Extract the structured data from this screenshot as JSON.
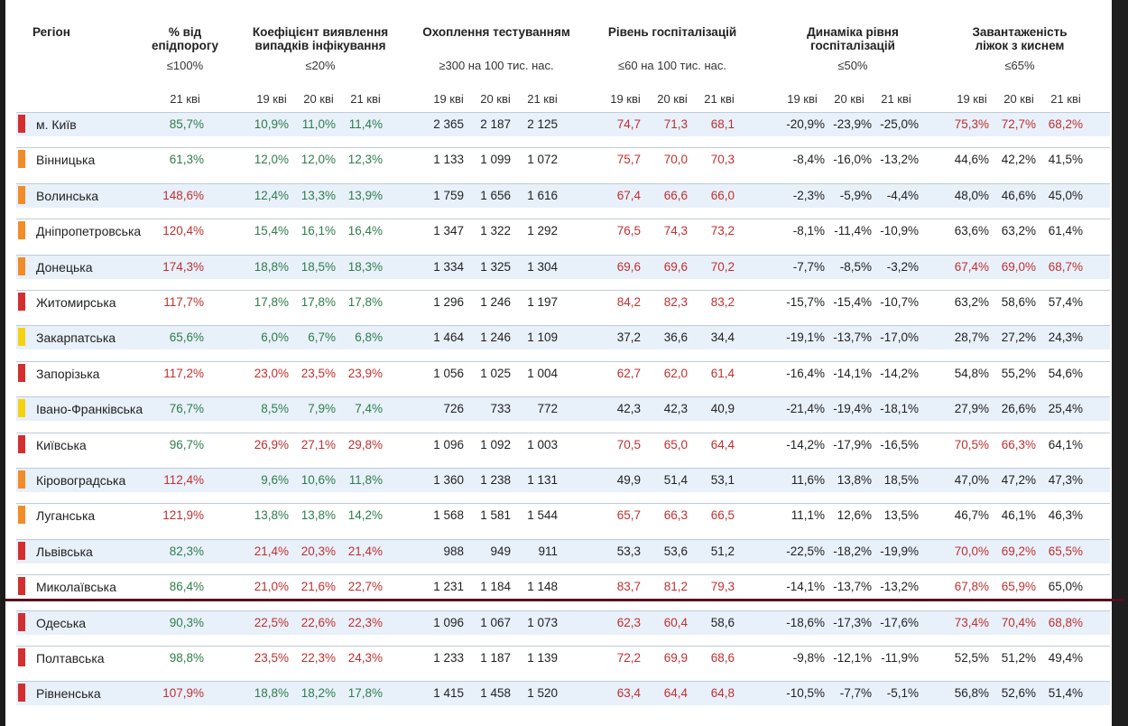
{
  "colors": {
    "red": "#d32f2f",
    "orange": "#f28c28",
    "yellow": "#f5d20f",
    "green_value": "#2e7d4a",
    "red_value": "#c0302f",
    "row_shade": "#e8f0fa",
    "divider": "#5a1020"
  },
  "header": {
    "region": "Регіон",
    "col_threshold": {
      "title1": "% від",
      "title2": "епідпорогу",
      "limit": "≤100%",
      "dates": [
        "21 кві"
      ]
    },
    "col_detect": {
      "title1": "Коефіцієнт виявлення",
      "title2": "випадків інфікування",
      "limit": "≤20%",
      "dates": [
        "19 кві",
        "20 кві",
        "21 кві"
      ]
    },
    "col_testing": {
      "title1": "Охоплення тестуванням",
      "title2": "",
      "limit": "≥300 на 100 тис. нас.",
      "dates": [
        "19 кві",
        "20 кві",
        "21 кві"
      ]
    },
    "col_hosp": {
      "title1": "Рівень госпіталізацій",
      "title2": "",
      "limit": "≤60 на 100 тис. нас.",
      "dates": [
        "19 кві",
        "20 кві",
        "21 кві"
      ]
    },
    "col_dyn": {
      "title1": "Динаміка рівня",
      "title2": "госпіталізацій",
      "limit": "≤50%",
      "dates": [
        "19 кві",
        "20 кві",
        "21 кві"
      ]
    },
    "col_beds": {
      "title1": "Завантаженість",
      "title2": "ліжок з киснем",
      "limit": "≤65%",
      "dates": [
        "19 кві",
        "20 кві",
        "21 кві"
      ]
    }
  },
  "rows": [
    {
      "region": "м. Київ",
      "status": "red",
      "thr": "85,7%",
      "det": [
        "10,9%",
        "11,0%",
        "11,4%"
      ],
      "test": [
        "2 365",
        "2 187",
        "2 125"
      ],
      "hosp": [
        "74,7",
        "71,3",
        "68,1"
      ],
      "dyn": [
        "-20,9%",
        "-23,9%",
        "-25,0%"
      ],
      "beds": [
        "75,3%",
        "72,7%",
        "68,2%"
      ]
    },
    {
      "region": "Вінницька",
      "status": "orange",
      "thr": "61,3%",
      "det": [
        "12,0%",
        "12,0%",
        "12,3%"
      ],
      "test": [
        "1 133",
        "1 099",
        "1 072"
      ],
      "hosp": [
        "75,7",
        "70,0",
        "70,3"
      ],
      "dyn": [
        "-8,4%",
        "-16,0%",
        "-13,2%"
      ],
      "beds": [
        "44,6%",
        "42,2%",
        "41,5%"
      ]
    },
    {
      "region": "Волинська",
      "status": "orange",
      "thr": "148,6%",
      "det": [
        "12,4%",
        "13,3%",
        "13,9%"
      ],
      "test": [
        "1 759",
        "1 656",
        "1 616"
      ],
      "hosp": [
        "67,4",
        "66,6",
        "66,0"
      ],
      "dyn": [
        "-2,3%",
        "-5,9%",
        "-4,4%"
      ],
      "beds": [
        "48,0%",
        "46,6%",
        "45,0%"
      ]
    },
    {
      "region": "Дніпропетровська",
      "status": "orange",
      "thr": "120,4%",
      "det": [
        "15,4%",
        "16,1%",
        "16,4%"
      ],
      "test": [
        "1 347",
        "1 322",
        "1 292"
      ],
      "hosp": [
        "76,5",
        "74,3",
        "73,2"
      ],
      "dyn": [
        "-8,1%",
        "-11,4%",
        "-10,9%"
      ],
      "beds": [
        "63,6%",
        "63,2%",
        "61,4%"
      ]
    },
    {
      "region": "Донецька",
      "status": "orange",
      "thr": "174,3%",
      "det": [
        "18,8%",
        "18,5%",
        "18,3%"
      ],
      "test": [
        "1 334",
        "1 325",
        "1 304"
      ],
      "hosp": [
        "69,6",
        "69,6",
        "70,2"
      ],
      "dyn": [
        "-7,7%",
        "-8,5%",
        "-3,2%"
      ],
      "beds": [
        "67,4%",
        "69,0%",
        "68,7%"
      ]
    },
    {
      "region": "Житомирська",
      "status": "red",
      "thr": "117,7%",
      "det": [
        "17,8%",
        "17,8%",
        "17,8%"
      ],
      "test": [
        "1 296",
        "1 246",
        "1 197"
      ],
      "hosp": [
        "84,2",
        "82,3",
        "83,2"
      ],
      "dyn": [
        "-15,7%",
        "-15,4%",
        "-10,7%"
      ],
      "beds": [
        "63,2%",
        "58,6%",
        "57,4%"
      ]
    },
    {
      "region": "Закарпатська",
      "status": "yellow",
      "thr": "65,6%",
      "det": [
        "6,0%",
        "6,7%",
        "6,8%"
      ],
      "test": [
        "1 464",
        "1 246",
        "1 109"
      ],
      "hosp": [
        "37,2",
        "36,6",
        "34,4"
      ],
      "dyn": [
        "-19,1%",
        "-13,7%",
        "-17,0%"
      ],
      "beds": [
        "28,7%",
        "27,2%",
        "24,3%"
      ]
    },
    {
      "region": "Запорізька",
      "status": "red",
      "thr": "117,2%",
      "det": [
        "23,0%",
        "23,5%",
        "23,9%"
      ],
      "test": [
        "1 056",
        "1 025",
        "1 004"
      ],
      "hosp": [
        "62,7",
        "62,0",
        "61,4"
      ],
      "dyn": [
        "-16,4%",
        "-14,1%",
        "-14,2%"
      ],
      "beds": [
        "54,8%",
        "55,2%",
        "54,6%"
      ]
    },
    {
      "region": "Івано-Франківська",
      "status": "yellow",
      "thr": "76,7%",
      "det": [
        "8,5%",
        "7,9%",
        "7,4%"
      ],
      "test": [
        "726",
        "733",
        "772"
      ],
      "hosp": [
        "42,3",
        "42,3",
        "40,9"
      ],
      "dyn": [
        "-21,4%",
        "-19,4%",
        "-18,1%"
      ],
      "beds": [
        "27,9%",
        "26,6%",
        "25,4%"
      ]
    },
    {
      "region": "Київська",
      "status": "red",
      "thr": "96,7%",
      "det": [
        "26,9%",
        "27,1%",
        "29,8%"
      ],
      "test": [
        "1 096",
        "1 092",
        "1 003"
      ],
      "hosp": [
        "70,5",
        "65,0",
        "64,4"
      ],
      "dyn": [
        "-14,2%",
        "-17,9%",
        "-16,5%"
      ],
      "beds": [
        "70,5%",
        "66,3%",
        "64,1%"
      ]
    },
    {
      "region": "Кіровоградська",
      "status": "orange",
      "thr": "112,4%",
      "det": [
        "9,6%",
        "10,6%",
        "11,8%"
      ],
      "test": [
        "1 360",
        "1 238",
        "1 131"
      ],
      "hosp": [
        "49,9",
        "51,4",
        "53,1"
      ],
      "dyn": [
        "11,6%",
        "13,8%",
        "18,5%"
      ],
      "beds": [
        "47,0%",
        "47,2%",
        "47,3%"
      ]
    },
    {
      "region": "Луганська",
      "status": "orange",
      "thr": "121,9%",
      "det": [
        "13,8%",
        "13,8%",
        "14,2%"
      ],
      "test": [
        "1 568",
        "1 581",
        "1 544"
      ],
      "hosp": [
        "65,7",
        "66,3",
        "66,5"
      ],
      "dyn": [
        "11,1%",
        "12,6%",
        "13,5%"
      ],
      "beds": [
        "46,7%",
        "46,1%",
        "46,3%"
      ]
    },
    {
      "region": "Львівська",
      "status": "red",
      "thr": "82,3%",
      "det": [
        "21,4%",
        "20,3%",
        "21,4%"
      ],
      "test": [
        "988",
        "949",
        "911"
      ],
      "hosp": [
        "53,3",
        "53,6",
        "51,2"
      ],
      "dyn": [
        "-22,5%",
        "-18,2%",
        "-19,9%"
      ],
      "beds": [
        "70,0%",
        "69,2%",
        "65,5%"
      ]
    },
    {
      "region": "Миколаївська",
      "status": "red",
      "thr": "86,4%",
      "det": [
        "21,0%",
        "21,6%",
        "22,7%"
      ],
      "test": [
        "1 231",
        "1 184",
        "1 148"
      ],
      "hosp": [
        "83,7",
        "81,2",
        "79,3"
      ],
      "dyn": [
        "-14,1%",
        "-13,7%",
        "-13,2%"
      ],
      "beds": [
        "67,8%",
        "65,9%",
        "65,0%"
      ]
    },
    {
      "region": "Одеська",
      "status": "red",
      "thr": "90,3%",
      "det": [
        "22,5%",
        "22,6%",
        "22,3%"
      ],
      "test": [
        "1 096",
        "1 067",
        "1 073"
      ],
      "hosp": [
        "62,3",
        "60,4",
        "58,6"
      ],
      "dyn": [
        "-18,6%",
        "-17,3%",
        "-17,6%"
      ],
      "beds": [
        "73,4%",
        "70,4%",
        "68,8%"
      ]
    },
    {
      "region": "Полтавська",
      "status": "red",
      "thr": "98,8%",
      "det": [
        "23,5%",
        "22,3%",
        "24,3%"
      ],
      "test": [
        "1 233",
        "1 187",
        "1 139"
      ],
      "hosp": [
        "72,2",
        "69,9",
        "68,6"
      ],
      "dyn": [
        "-9,8%",
        "-12,1%",
        "-11,9%"
      ],
      "beds": [
        "52,5%",
        "51,2%",
        "49,4%"
      ]
    },
    {
      "region": "Рівненська",
      "status": "red",
      "thr": "107,9%",
      "det": [
        "18,8%",
        "18,2%",
        "17,8%"
      ],
      "test": [
        "1 415",
        "1 458",
        "1 520"
      ],
      "hosp": [
        "63,4",
        "64,4",
        "64,8"
      ],
      "dyn": [
        "-10,5%",
        "-7,7%",
        "-5,1%"
      ],
      "beds": [
        "56,8%",
        "52,6%",
        "51,4%"
      ]
    }
  ]
}
